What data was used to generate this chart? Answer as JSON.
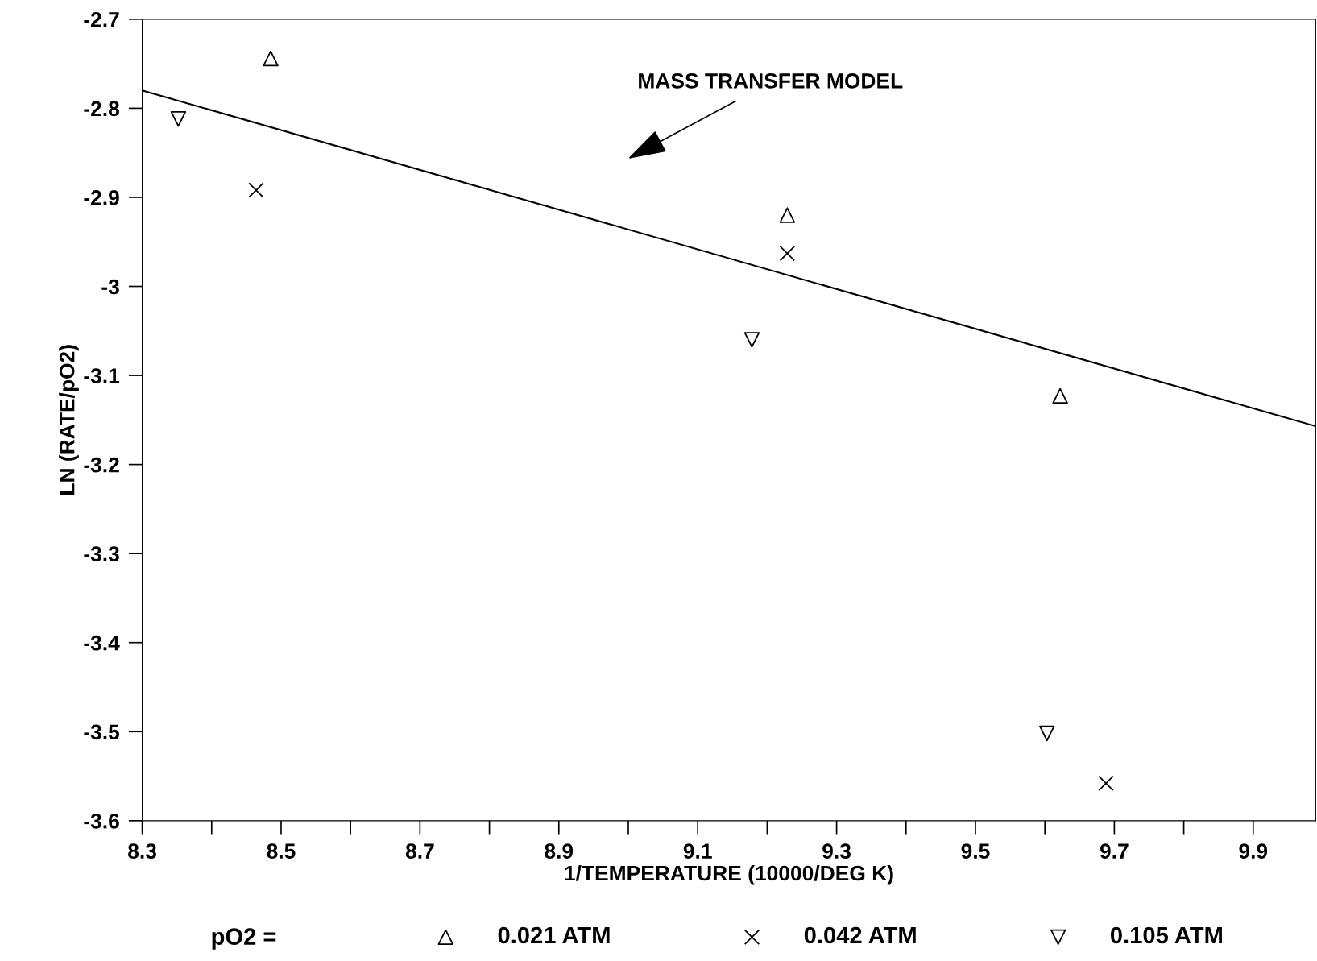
{
  "chart_data": {
    "type": "scatter",
    "xlabel": "1/TEMPERATURE (10000/DEG K)",
    "ylabel": "LN (RATE/pO2)",
    "legend_title": "pO2 =",
    "legend": "bottom",
    "xlim": [
      8.3,
      9.99
    ],
    "ylim": [
      -3.6,
      -2.7
    ],
    "xticks": [
      8.3,
      8.5,
      8.7,
      8.9,
      9.1,
      9.3,
      9.5,
      9.7,
      9.9
    ],
    "yticks": [
      -2.7,
      -2.8,
      -2.9,
      -3,
      -3.1,
      -3.2,
      -3.3,
      -3.4,
      -3.5,
      -3.6
    ],
    "grid": false,
    "series": [
      {
        "name": "0.021 ATM",
        "color": "#000000",
        "marker": "triangle",
        "x": [
          8.485,
          9.229,
          9.622
        ],
        "values": [
          -2.744,
          -2.92,
          -3.123
        ]
      },
      {
        "name": "0.042 ATM",
        "color": "#000000",
        "marker": "cross",
        "x": [
          8.464,
          9.229,
          9.688
        ],
        "values": [
          -2.892,
          -2.963,
          -3.558
        ]
      },
      {
        "name": "0.105 ATM",
        "color": "#000000",
        "marker": "triangle_down",
        "x": [
          8.352,
          9.178,
          9.603
        ],
        "values": [
          -2.812,
          -3.06,
          -3.502
        ]
      },
      {
        "type": "line",
        "color": "#000000",
        "x": [
          8.3,
          9.99
        ],
        "values": [
          -2.78,
          -3.157
        ]
      }
    ],
    "annotations": [
      "MASS TRANSFER MODEL"
    ]
  }
}
